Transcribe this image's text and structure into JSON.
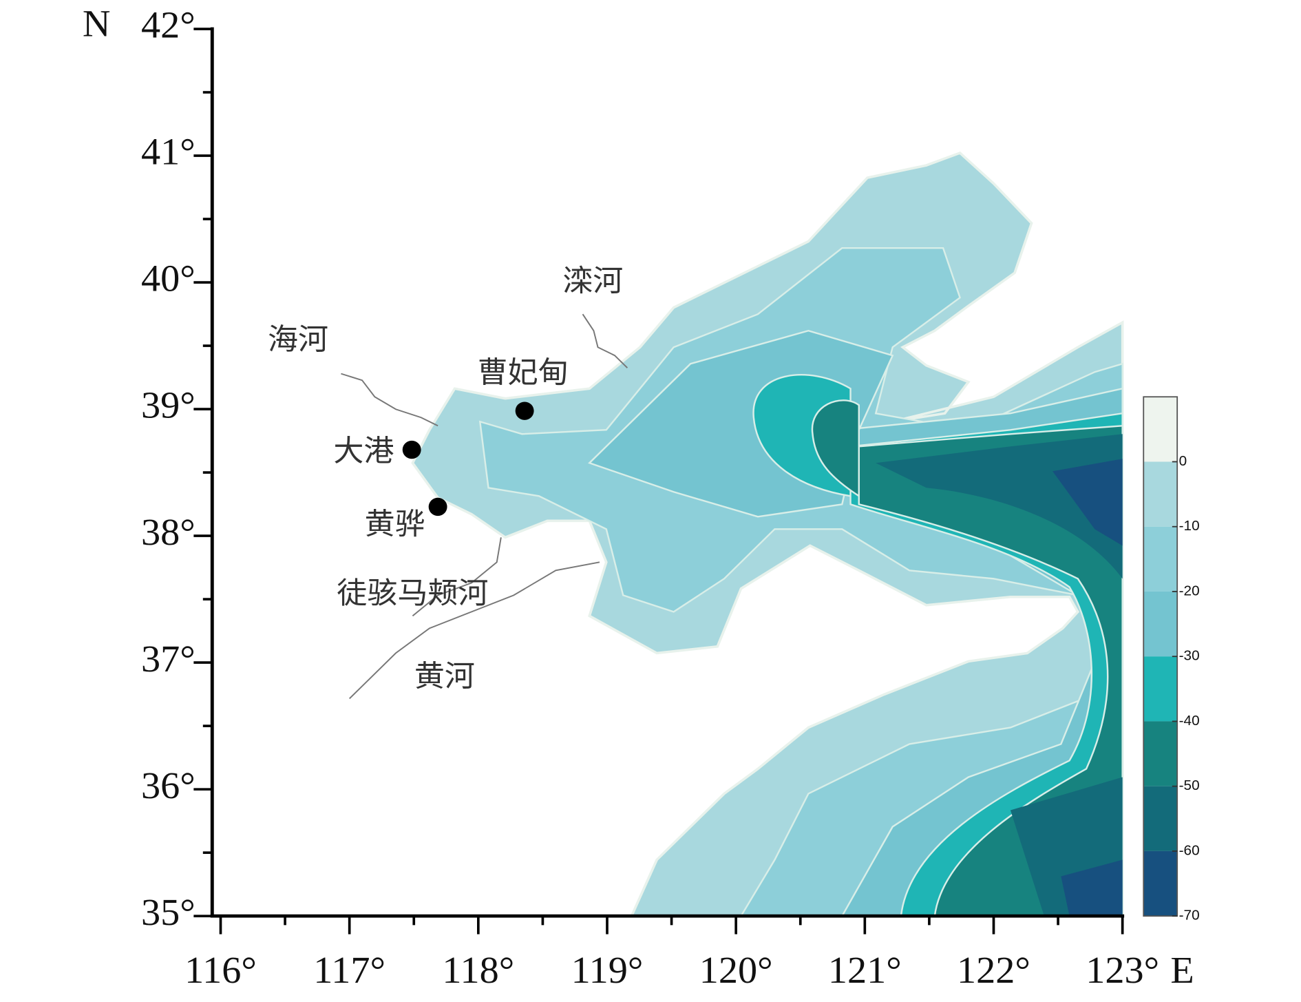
{
  "map": {
    "lat_axis": {
      "label": "N",
      "lim": [
        35,
        42
      ],
      "ticks": [
        {
          "value": 35,
          "label": "35°"
        },
        {
          "value": 36,
          "label": "36°"
        },
        {
          "value": 37,
          "label": "37°"
        },
        {
          "value": 38,
          "label": "38°"
        },
        {
          "value": 39,
          "label": "39°"
        },
        {
          "value": 40,
          "label": "40°"
        },
        {
          "value": 41,
          "label": "41°"
        },
        {
          "value": 42,
          "label": "42°"
        }
      ]
    },
    "lon_axis": {
      "label": "E",
      "lim": [
        116,
        123
      ],
      "ticks": [
        {
          "value": 116,
          "label": "116°"
        },
        {
          "value": 117,
          "label": "117°"
        },
        {
          "value": 118,
          "label": "118°"
        },
        {
          "value": 119,
          "label": "119°"
        },
        {
          "value": 120,
          "label": "120°"
        },
        {
          "value": 121,
          "label": "121°"
        },
        {
          "value": 122,
          "label": "122°"
        },
        {
          "value": 123,
          "label": "123°"
        }
      ]
    },
    "colorbar": {
      "lim": [
        -70,
        10
      ],
      "ticks": [
        0,
        -10,
        -20,
        -30,
        -40,
        -50,
        -60,
        -70
      ],
      "colors": [
        "#eef4ee",
        "#a8d8de",
        "#8dcfd9",
        "#74c4d0",
        "#1fb5b5",
        "#17837f",
        "#136b7a",
        "#17507f"
      ]
    },
    "places": [
      "滦河",
      "海河",
      "曹妃甸",
      "大港",
      "黄骅",
      "徒骇马颊河",
      "黄河"
    ]
  }
}
